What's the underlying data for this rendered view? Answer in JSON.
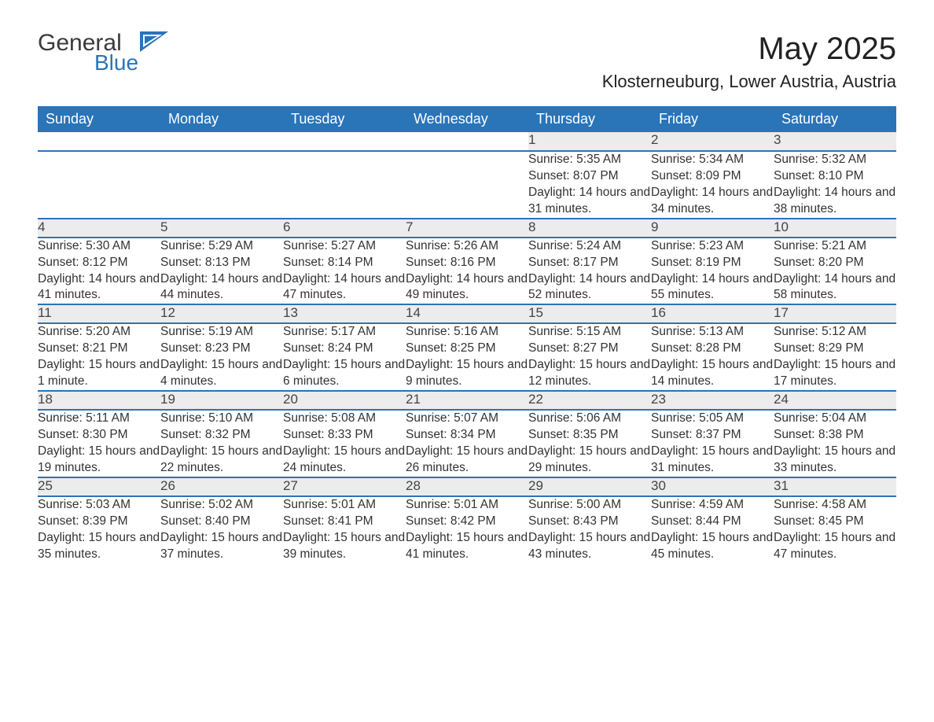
{
  "logo": {
    "text_main": "General",
    "text_sub": "Blue"
  },
  "title": "May 2025",
  "subtitle": "Klosterneuburg, Lower Austria, Austria",
  "columns": [
    "Sunday",
    "Monday",
    "Tuesday",
    "Wednesday",
    "Thursday",
    "Friday",
    "Saturday"
  ],
  "colors": {
    "header_bg": "#2a74b8",
    "header_text": "#ffffff",
    "daynum_bg": "#ececec",
    "text": "#333333",
    "row_divider": "#2a74b8",
    "page_bg": "#ffffff",
    "logo_accent": "#2a74b8"
  },
  "typography": {
    "title_fontsize": 40,
    "subtitle_fontsize": 22,
    "header_fontsize": 18,
    "daynum_fontsize": 17,
    "detail_fontsize": 15.5,
    "font_family": "Arial"
  },
  "weeks": [
    [
      null,
      null,
      null,
      null,
      {
        "day": "1",
        "sunrise": "Sunrise: 5:35 AM",
        "sunset": "Sunset: 8:07 PM",
        "daylight": "Daylight: 14 hours and 31 minutes."
      },
      {
        "day": "2",
        "sunrise": "Sunrise: 5:34 AM",
        "sunset": "Sunset: 8:09 PM",
        "daylight": "Daylight: 14 hours and 34 minutes."
      },
      {
        "day": "3",
        "sunrise": "Sunrise: 5:32 AM",
        "sunset": "Sunset: 8:10 PM",
        "daylight": "Daylight: 14 hours and 38 minutes."
      }
    ],
    [
      {
        "day": "4",
        "sunrise": "Sunrise: 5:30 AM",
        "sunset": "Sunset: 8:12 PM",
        "daylight": "Daylight: 14 hours and 41 minutes."
      },
      {
        "day": "5",
        "sunrise": "Sunrise: 5:29 AM",
        "sunset": "Sunset: 8:13 PM",
        "daylight": "Daylight: 14 hours and 44 minutes."
      },
      {
        "day": "6",
        "sunrise": "Sunrise: 5:27 AM",
        "sunset": "Sunset: 8:14 PM",
        "daylight": "Daylight: 14 hours and 47 minutes."
      },
      {
        "day": "7",
        "sunrise": "Sunrise: 5:26 AM",
        "sunset": "Sunset: 8:16 PM",
        "daylight": "Daylight: 14 hours and 49 minutes."
      },
      {
        "day": "8",
        "sunrise": "Sunrise: 5:24 AM",
        "sunset": "Sunset: 8:17 PM",
        "daylight": "Daylight: 14 hours and 52 minutes."
      },
      {
        "day": "9",
        "sunrise": "Sunrise: 5:23 AM",
        "sunset": "Sunset: 8:19 PM",
        "daylight": "Daylight: 14 hours and 55 minutes."
      },
      {
        "day": "10",
        "sunrise": "Sunrise: 5:21 AM",
        "sunset": "Sunset: 8:20 PM",
        "daylight": "Daylight: 14 hours and 58 minutes."
      }
    ],
    [
      {
        "day": "11",
        "sunrise": "Sunrise: 5:20 AM",
        "sunset": "Sunset: 8:21 PM",
        "daylight": "Daylight: 15 hours and 1 minute."
      },
      {
        "day": "12",
        "sunrise": "Sunrise: 5:19 AM",
        "sunset": "Sunset: 8:23 PM",
        "daylight": "Daylight: 15 hours and 4 minutes."
      },
      {
        "day": "13",
        "sunrise": "Sunrise: 5:17 AM",
        "sunset": "Sunset: 8:24 PM",
        "daylight": "Daylight: 15 hours and 6 minutes."
      },
      {
        "day": "14",
        "sunrise": "Sunrise: 5:16 AM",
        "sunset": "Sunset: 8:25 PM",
        "daylight": "Daylight: 15 hours and 9 minutes."
      },
      {
        "day": "15",
        "sunrise": "Sunrise: 5:15 AM",
        "sunset": "Sunset: 8:27 PM",
        "daylight": "Daylight: 15 hours and 12 minutes."
      },
      {
        "day": "16",
        "sunrise": "Sunrise: 5:13 AM",
        "sunset": "Sunset: 8:28 PM",
        "daylight": "Daylight: 15 hours and 14 minutes."
      },
      {
        "day": "17",
        "sunrise": "Sunrise: 5:12 AM",
        "sunset": "Sunset: 8:29 PM",
        "daylight": "Daylight: 15 hours and 17 minutes."
      }
    ],
    [
      {
        "day": "18",
        "sunrise": "Sunrise: 5:11 AM",
        "sunset": "Sunset: 8:30 PM",
        "daylight": "Daylight: 15 hours and 19 minutes."
      },
      {
        "day": "19",
        "sunrise": "Sunrise: 5:10 AM",
        "sunset": "Sunset: 8:32 PM",
        "daylight": "Daylight: 15 hours and 22 minutes."
      },
      {
        "day": "20",
        "sunrise": "Sunrise: 5:08 AM",
        "sunset": "Sunset: 8:33 PM",
        "daylight": "Daylight: 15 hours and 24 minutes."
      },
      {
        "day": "21",
        "sunrise": "Sunrise: 5:07 AM",
        "sunset": "Sunset: 8:34 PM",
        "daylight": "Daylight: 15 hours and 26 minutes."
      },
      {
        "day": "22",
        "sunrise": "Sunrise: 5:06 AM",
        "sunset": "Sunset: 8:35 PM",
        "daylight": "Daylight: 15 hours and 29 minutes."
      },
      {
        "day": "23",
        "sunrise": "Sunrise: 5:05 AM",
        "sunset": "Sunset: 8:37 PM",
        "daylight": "Daylight: 15 hours and 31 minutes."
      },
      {
        "day": "24",
        "sunrise": "Sunrise: 5:04 AM",
        "sunset": "Sunset: 8:38 PM",
        "daylight": "Daylight: 15 hours and 33 minutes."
      }
    ],
    [
      {
        "day": "25",
        "sunrise": "Sunrise: 5:03 AM",
        "sunset": "Sunset: 8:39 PM",
        "daylight": "Daylight: 15 hours and 35 minutes."
      },
      {
        "day": "26",
        "sunrise": "Sunrise: 5:02 AM",
        "sunset": "Sunset: 8:40 PM",
        "daylight": "Daylight: 15 hours and 37 minutes."
      },
      {
        "day": "27",
        "sunrise": "Sunrise: 5:01 AM",
        "sunset": "Sunset: 8:41 PM",
        "daylight": "Daylight: 15 hours and 39 minutes."
      },
      {
        "day": "28",
        "sunrise": "Sunrise: 5:01 AM",
        "sunset": "Sunset: 8:42 PM",
        "daylight": "Daylight: 15 hours and 41 minutes."
      },
      {
        "day": "29",
        "sunrise": "Sunrise: 5:00 AM",
        "sunset": "Sunset: 8:43 PM",
        "daylight": "Daylight: 15 hours and 43 minutes."
      },
      {
        "day": "30",
        "sunrise": "Sunrise: 4:59 AM",
        "sunset": "Sunset: 8:44 PM",
        "daylight": "Daylight: 15 hours and 45 minutes."
      },
      {
        "day": "31",
        "sunrise": "Sunrise: 4:58 AM",
        "sunset": "Sunset: 8:45 PM",
        "daylight": "Daylight: 15 hours and 47 minutes."
      }
    ]
  ]
}
